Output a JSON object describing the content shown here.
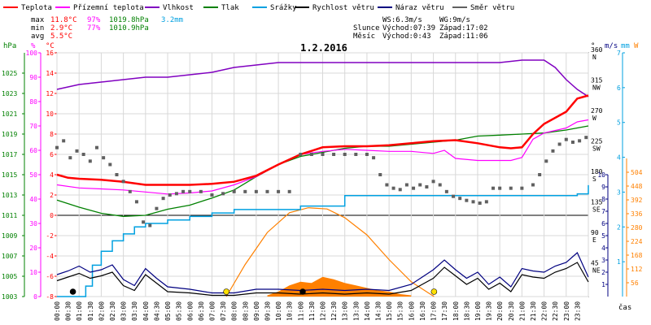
{
  "legend": [
    {
      "label": "Teplota",
      "color": "#ff0000"
    },
    {
      "label": "Přízemní teplota",
      "color": "#ff00ff"
    },
    {
      "label": "Vlhkost",
      "color": "#8000c0"
    },
    {
      "label": "Tlak",
      "color": "#008000"
    },
    {
      "label": "Srážky",
      "color": "#00a0e0"
    },
    {
      "label": "Rychlost větru",
      "color": "#000000"
    },
    {
      "label": "Náraz větru",
      "color": "#000080"
    },
    {
      "label": "Směr větru",
      "color": "#606060"
    }
  ],
  "stats": {
    "max": {
      "label": "max",
      "temp": "11.8°C",
      "hum": "97%",
      "press": "1019.8hPa",
      "rain": "3.2mm"
    },
    "min": {
      "label": "min",
      "temp": "2.9°C",
      "hum": "77%",
      "press": "1010.9hPa"
    },
    "avg": {
      "label": "avg",
      "temp": "5.5°C"
    }
  },
  "info": {
    "ws": "WS:6.3m/s",
    "wg": "WG:9m/s",
    "sun_label": "Slunce",
    "sun_rise": "Východ:07:39",
    "sun_set": "Západ:17:02",
    "moon_label": "Měsíc",
    "moon_rise": "Východ:0:43",
    "moon_set": "Západ:11:06"
  },
  "colors": {
    "temp": "#ff0000",
    "ground": "#ff00ff",
    "hum": "#8000c0",
    "press": "#008000",
    "rain": "#00a0e0",
    "wind": "#000000",
    "gust": "#000080",
    "dir": "#606060",
    "solar": "#ff8000"
  },
  "chart_data": {
    "type": "line",
    "title": "1.2.2016",
    "xlabel": "čas",
    "x_ticks": [
      "00:00",
      "00:30",
      "01:00",
      "01:30",
      "02:00",
      "02:30",
      "03:00",
      "03:30",
      "04:00",
      "04:30",
      "05:00",
      "05:30",
      "06:00",
      "06:30",
      "07:00",
      "07:30",
      "08:00",
      "08:30",
      "09:00",
      "09:30",
      "10:00",
      "10:30",
      "11:00",
      "11:30",
      "12:00",
      "12:30",
      "13:00",
      "13:30",
      "14:00",
      "14:30",
      "15:00",
      "15:30",
      "16:00",
      "16:30",
      "17:00",
      "17:30",
      "18:00",
      "18:30",
      "19:00",
      "19:30",
      "20:00",
      "20:30",
      "21:00",
      "21:30",
      "22:00",
      "22:30",
      "23:00",
      "23:30"
    ],
    "axes": {
      "pressure": {
        "unit": "hPa",
        "range": [
          1003,
          1027
        ],
        "ticks": [
          "1003",
          "1005",
          "1007",
          "1009",
          "1011",
          "1013",
          "1015",
          "1017",
          "1019",
          "1021",
          "1023",
          "1025"
        ]
      },
      "humidity": {
        "unit": "%",
        "range": [
          0,
          100
        ],
        "ticks": [
          "0",
          "10",
          "20",
          "30",
          "40",
          "50",
          "60",
          "70",
          "80",
          "90",
          "100"
        ]
      },
      "temperature": {
        "unit": "°C",
        "range": [
          -8,
          16
        ],
        "ticks": [
          "-8",
          "-6",
          "-4",
          "-2",
          "0",
          "2",
          "4",
          "6",
          "8",
          "10",
          "12",
          "14",
          "16"
        ]
      },
      "direction": {
        "unit": "°",
        "range": [
          0,
          360
        ],
        "ticks": [
          {
            "deg": "45",
            "name": "NE"
          },
          {
            "deg": "90",
            "name": "E"
          },
          {
            "deg": "135",
            "name": "SE"
          },
          {
            "deg": "180",
            "name": "S"
          },
          {
            "deg": "225",
            "name": "SW"
          },
          {
            "deg": "270",
            "name": "W"
          },
          {
            "deg": "315",
            "name": "NW"
          },
          {
            "deg": "360",
            "name": "N"
          }
        ]
      },
      "wind": {
        "unit": "m/s",
        "range": [
          0,
          10
        ],
        "ticks": [
          "1",
          "2",
          "3",
          "4",
          "5",
          "6",
          "7",
          "8",
          "9",
          "10"
        ]
      },
      "rain": {
        "unit": "mm",
        "range": [
          0,
          7
        ],
        "ticks": [
          "1",
          "2",
          "3",
          "4",
          "5",
          "6",
          "7"
        ]
      },
      "solar": {
        "unit": "W",
        "range": [
          0,
          560
        ],
        "ticks": [
          "56",
          "112",
          "168",
          "224",
          "280",
          "336",
          "392",
          "448",
          "504"
        ]
      }
    },
    "series": [
      {
        "name": "Teplota",
        "unit": "°C",
        "x": [
          0,
          0.5,
          1,
          2,
          3,
          4,
          5,
          6,
          7,
          8,
          9,
          10,
          11,
          12,
          13,
          14,
          15,
          16,
          17,
          18,
          19,
          20,
          20.5,
          21,
          21.5,
          22,
          23,
          23.5,
          24
        ],
        "values": [
          4.0,
          3.7,
          3.6,
          3.5,
          3.3,
          3.0,
          3.0,
          3.0,
          3.1,
          3.3,
          3.9,
          5.0,
          6.0,
          6.7,
          6.8,
          6.8,
          6.9,
          7.1,
          7.3,
          7.4,
          7.1,
          6.7,
          6.6,
          6.7,
          8.0,
          9.0,
          10.2,
          11.5,
          11.8
        ]
      },
      {
        "name": "Přízemní teplota",
        "unit": "°C",
        "x": [
          0,
          1,
          2,
          3,
          4,
          5,
          6,
          7,
          8,
          9,
          10,
          11,
          12,
          13,
          14,
          15,
          16,
          17,
          17.5,
          18,
          19,
          20,
          20.5,
          21,
          21.5,
          22,
          23,
          23.5,
          24
        ],
        "values": [
          3.0,
          2.7,
          2.6,
          2.5,
          2.3,
          2.1,
          2.2,
          2.4,
          3.0,
          3.8,
          5.0,
          6.0,
          6.3,
          6.5,
          6.4,
          6.3,
          6.3,
          6.1,
          6.4,
          5.6,
          5.4,
          5.4,
          5.4,
          5.7,
          7.5,
          8.1,
          8.6,
          9.2,
          9.4
        ]
      },
      {
        "name": "Vlhkost",
        "unit": "%",
        "x": [
          0,
          1,
          2,
          3,
          4,
          5,
          6,
          7,
          8,
          9,
          10,
          11,
          12,
          13,
          14,
          15,
          16,
          17,
          18,
          19,
          20,
          21,
          21.5,
          22,
          22.5,
          23,
          23.5,
          24
        ],
        "values": [
          85,
          87,
          88,
          89,
          90,
          90,
          91,
          92,
          94,
          95,
          96,
          96,
          96,
          96,
          96,
          96,
          96,
          96,
          96,
          96,
          96,
          97,
          97,
          97,
          94,
          89,
          85,
          82
        ]
      },
      {
        "name": "Tlak",
        "unit": "hPa",
        "x": [
          0,
          1,
          2,
          3,
          4,
          5,
          6,
          7,
          8,
          9,
          10,
          11,
          12,
          13,
          14,
          15,
          16,
          17,
          18,
          19,
          20,
          21,
          22,
          23,
          24
        ],
        "values": [
          1012.5,
          1011.8,
          1011.2,
          1010.9,
          1011.0,
          1011.6,
          1012.0,
          1012.7,
          1013.5,
          1014.8,
          1016.0,
          1016.8,
          1017.2,
          1017.6,
          1017.8,
          1017.8,
          1018.0,
          1018.2,
          1018.4,
          1018.8,
          1018.9,
          1019.0,
          1019.1,
          1019.4,
          1019.8
        ]
      },
      {
        "name": "Srážky",
        "unit": "mm",
        "x": [
          0,
          1,
          1.3,
          1.6,
          2.0,
          2.5,
          3.0,
          3.5,
          4.0,
          5.0,
          6.0,
          7.0,
          7.5,
          8.0,
          9.0,
          10.0,
          11.0,
          12.0,
          12.5,
          13.0,
          14.0,
          15.0,
          16.0,
          17.0,
          18.0,
          19.0,
          20.0,
          21.0,
          22.0,
          23.0,
          23.5,
          24.0
        ],
        "values": [
          0,
          0,
          0.3,
          0.9,
          1.3,
          1.6,
          1.8,
          2.0,
          2.1,
          2.2,
          2.3,
          2.4,
          2.4,
          2.5,
          2.5,
          2.5,
          2.6,
          2.6,
          2.6,
          2.9,
          2.9,
          2.9,
          2.9,
          2.9,
          2.9,
          2.9,
          2.9,
          2.9,
          2.9,
          2.9,
          2.95,
          3.2
        ]
      },
      {
        "name": "Rychlost větru",
        "unit": "m/s",
        "x": [
          0,
          0.5,
          1,
          1.5,
          2,
          2.5,
          3,
          3.5,
          4,
          4.5,
          5,
          6,
          7,
          8,
          9,
          10,
          11,
          12,
          13,
          14,
          15,
          16,
          16.5,
          17,
          17.5,
          18,
          18.5,
          19,
          19.5,
          20,
          20.5,
          21,
          21.5,
          22,
          22.5,
          23,
          23.5,
          24
        ],
        "values": [
          1.3,
          1.6,
          1.9,
          1.5,
          1.7,
          2.0,
          0.9,
          0.5,
          1.8,
          1.1,
          0.4,
          0.3,
          0.1,
          0.1,
          0.3,
          0.3,
          0.2,
          0.3,
          0.2,
          0.3,
          0.2,
          0.5,
          1.0,
          1.5,
          2.4,
          1.7,
          1.0,
          1.5,
          0.6,
          1.1,
          0.4,
          1.8,
          1.6,
          1.5,
          2.0,
          2.3,
          2.8,
          1.2
        ]
      },
      {
        "name": "Náraz větru",
        "unit": "m/s",
        "x": [
          0,
          0.5,
          1,
          1.5,
          2,
          2.5,
          3,
          3.5,
          4,
          4.5,
          5,
          6,
          7,
          8,
          9,
          10,
          11,
          12,
          13,
          14,
          15,
          16,
          16.5,
          17,
          17.5,
          18,
          18.5,
          19,
          19.5,
          20,
          20.5,
          21,
          21.5,
          22,
          22.5,
          23,
          23.5,
          24
        ],
        "values": [
          1.8,
          2.1,
          2.5,
          2.0,
          2.2,
          2.6,
          1.4,
          0.9,
          2.3,
          1.5,
          0.8,
          0.6,
          0.3,
          0.3,
          0.6,
          0.6,
          0.5,
          0.6,
          0.5,
          0.6,
          0.5,
          1.0,
          1.6,
          2.2,
          3.0,
          2.2,
          1.5,
          2.0,
          1.0,
          1.6,
          0.8,
          2.3,
          2.1,
          2.0,
          2.5,
          2.8,
          3.6,
          1.6
        ]
      },
      {
        "name": "Směr větru",
        "unit": "°",
        "type": "scatter",
        "x": [
          0,
          0.3,
          0.6,
          0.9,
          1.2,
          1.5,
          1.8,
          2.1,
          2.4,
          2.7,
          3.0,
          3.3,
          3.6,
          3.9,
          4.2,
          4.5,
          4.8,
          5.1,
          5.4,
          5.7,
          6.0,
          6.5,
          7.0,
          7.5,
          8.0,
          8.5,
          9.0,
          9.5,
          10.0,
          10.5,
          11.0,
          11.5,
          12.0,
          12.5,
          13.0,
          13.5,
          14.0,
          14.3,
          14.6,
          14.9,
          15.2,
          15.5,
          15.8,
          16.1,
          16.4,
          16.7,
          17.0,
          17.3,
          17.6,
          17.9,
          18.2,
          18.5,
          18.8,
          19.1,
          19.4,
          19.7,
          20.0,
          20.5,
          21.0,
          21.5,
          21.8,
          22.1,
          22.4,
          22.7,
          23.0,
          23.3,
          23.6,
          23.9
        ],
        "values": [
          220,
          230,
          205,
          215,
          210,
          200,
          220,
          205,
          195,
          180,
          170,
          155,
          140,
          110,
          105,
          130,
          145,
          150,
          152,
          155,
          155,
          155,
          150,
          152,
          155,
          155,
          155,
          155,
          155,
          155,
          210,
          210,
          210,
          210,
          210,
          210,
          210,
          205,
          180,
          165,
          160,
          158,
          165,
          160,
          165,
          162,
          170,
          165,
          155,
          148,
          145,
          142,
          140,
          138,
          140,
          160,
          160,
          160,
          160,
          165,
          180,
          200,
          215,
          225,
          232,
          228,
          230,
          235
        ]
      }
    ],
    "solar_curve": {
      "name": "solar",
      "unit": "W",
      "x": [
        7.65,
        8.5,
        9.5,
        10.5,
        11.35,
        12.2,
        13.0,
        14.0,
        15.0,
        16.0,
        17.03
      ],
      "values": [
        0,
        130,
        260,
        340,
        360,
        355,
        320,
        250,
        150,
        60,
        0
      ]
    },
    "solar_measured": {
      "name": "solar_measured",
      "unit": "W",
      "x": [
        9.5,
        10.0,
        10.5,
        11.0,
        11.5,
        12.0,
        12.5,
        13.0,
        13.5,
        14.0,
        14.5,
        15.0,
        15.5,
        16.0
      ],
      "values": [
        5,
        20,
        45,
        60,
        55,
        80,
        70,
        55,
        45,
        35,
        25,
        20,
        10,
        5
      ]
    },
    "markers": [
      {
        "name": "moonrise",
        "x": 0.72,
        "color": "#000000"
      },
      {
        "name": "sunrise",
        "x": 7.65,
        "color": "#ffe000"
      },
      {
        "name": "moonset",
        "x": 11.1,
        "color": "#000000"
      },
      {
        "name": "sunset",
        "x": 17.03,
        "color": "#ffe000"
      }
    ],
    "grid": true
  }
}
